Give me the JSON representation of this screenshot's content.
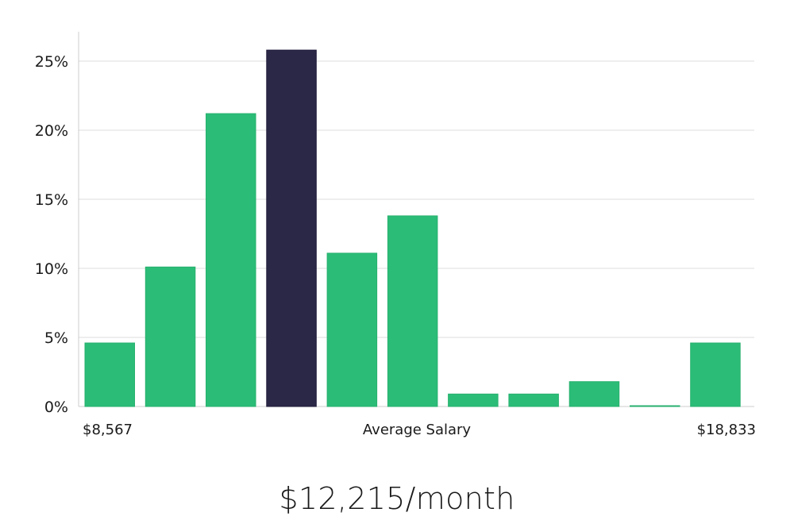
{
  "headline": "$12,215/month",
  "colors": {
    "bar": "#2bbd77",
    "highlight": "#2a2747",
    "grid": "#dddddd",
    "axis": "#cccccc"
  },
  "chart_data": {
    "type": "bar",
    "title": "",
    "xlabel": "Average Salary",
    "ylabel": "",
    "x_range_labels": {
      "min": "$8,567",
      "max": "$18,833"
    },
    "yticks": [
      "0%",
      "5%",
      "10%",
      "15%",
      "20%",
      "25%"
    ],
    "ylim": [
      0,
      27
    ],
    "grid": true,
    "values": [
      4.6,
      10.1,
      21.2,
      25.8,
      11.1,
      13.8,
      0.9,
      0.9,
      1.8,
      0.05,
      4.6
    ],
    "highlight_index": 3
  }
}
